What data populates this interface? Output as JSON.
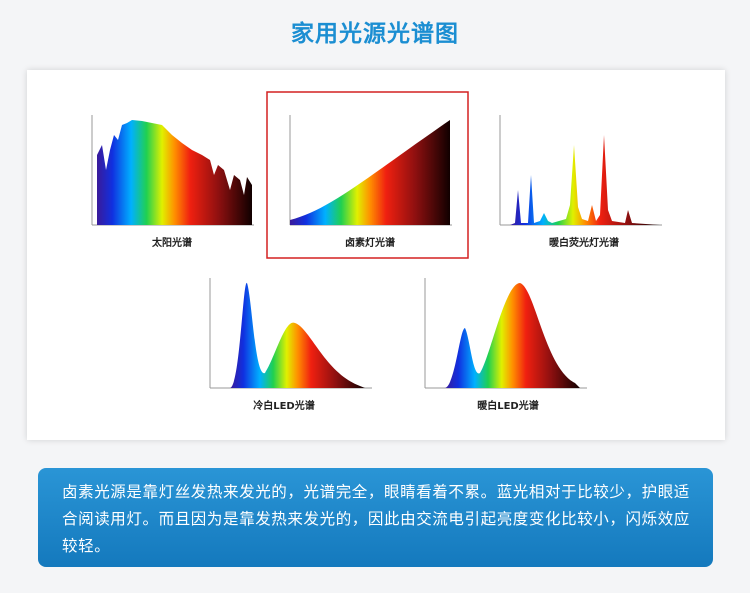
{
  "header": {
    "title": "家用光源光谱图"
  },
  "spectra": [
    {
      "label": "太阳光谱"
    },
    {
      "label": "卤素灯光谱"
    },
    {
      "label": "暖白荧光灯光谱"
    },
    {
      "label": "冷白LED光谱"
    },
    {
      "label": "暖白LED光谱"
    }
  ],
  "description": "卤素光源是靠灯丝发热来发光的，光谱完全，眼睛看着不累。蓝光相对于比较少，护眼适合阅读用灯。而且因为是靠发热来发光的，因此由交流电引起亮度变化比较小，闪烁效应较轻。"
}
